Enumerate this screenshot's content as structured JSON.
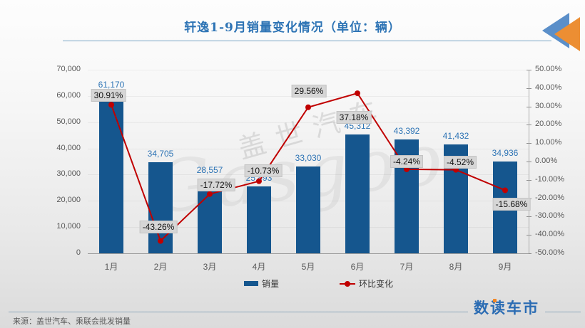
{
  "title": "轩逸1-9月销量变化情况（单位：辆）",
  "source_note": "来源：盖世汽车、乘联会批发销量",
  "site_logo_text": "数读车市",
  "watermark": {
    "cn": "盖世汽车",
    "en": "Gasgoo"
  },
  "legend": {
    "bar_label": "销量",
    "line_label": "环比变化"
  },
  "colors": {
    "bar": "#15568e",
    "line": "#c00000",
    "value_label": "#2e74b5",
    "title": "#2e74b5",
    "logo_blue": "#2b6cb3",
    "logo_orange": "#f28522",
    "pct_box_bg": "#d6d6d6"
  },
  "chart_data": {
    "type": "bar+line combo",
    "categories": [
      "1月",
      "2月",
      "3月",
      "4月",
      "5月",
      "6月",
      "7月",
      "8月",
      "9月"
    ],
    "series": [
      {
        "name": "销量",
        "type": "bar",
        "values": [
          61170,
          34705,
          28557,
          25493,
          33030,
          45312,
          43392,
          41432,
          34936
        ],
        "labels": [
          "61,170",
          "34,705",
          "28,557",
          "25,493",
          "33,030",
          "45,312",
          "43,392",
          "41,432",
          "34,936"
        ]
      },
      {
        "name": "环比变化",
        "type": "line",
        "values_pct": [
          30.91,
          -43.26,
          -17.72,
          -10.73,
          29.56,
          37.18,
          -4.24,
          -4.52,
          -15.68
        ],
        "labels": [
          "30.91%",
          "-43.26%",
          "-17.72%",
          "-10.73%",
          "29.56%",
          "37.18%",
          "-4.24%",
          "-4.52%",
          "-15.68%"
        ]
      }
    ],
    "left_axis": {
      "min": 0,
      "max": 70000,
      "step": 10000,
      "tick_labels": [
        "0",
        "10,000",
        "20,000",
        "30,000",
        "40,000",
        "50,000",
        "60,000",
        "70,000"
      ]
    },
    "right_axis": {
      "min": -50,
      "max": 50,
      "step": 10,
      "tick_labels": [
        "50.00%",
        "40.00%",
        "30.00%",
        "20.00%",
        "10.00%",
        "0.00%",
        "-10.00%",
        "-20.00%",
        "-30.00%",
        "-40.00%",
        "-50.00%"
      ]
    },
    "grid": "horizontal, faint",
    "legend_position": "bottom-center"
  }
}
